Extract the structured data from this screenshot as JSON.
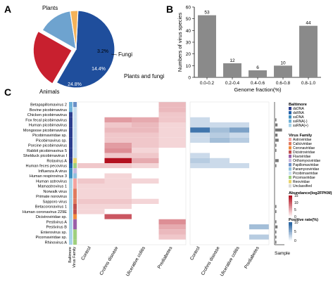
{
  "chart_data": [
    {
      "type": "pie",
      "panel": "A",
      "slices": [
        {
          "label": "Plants",
          "value": 57.6,
          "pct_text": "57.6%",
          "color": "#1f4e9c"
        },
        {
          "label": "Animals",
          "value": 24.8,
          "pct_text": "24.8%",
          "color": "#c8202f"
        },
        {
          "label": "Plants and fungi",
          "value": 14.4,
          "pct_text": "14.4%",
          "color": "#6ea3cf"
        },
        {
          "label": "Fungi",
          "value": 3.2,
          "pct_text": "3.2%",
          "color": "#f5b35a"
        }
      ]
    },
    {
      "type": "bar",
      "panel": "B",
      "categories": [
        "0.0-0.2",
        "0.2-0.4",
        "0.4-0.6",
        "0.6-0.8",
        "0.8-1.0"
      ],
      "values": [
        53,
        12,
        6,
        10,
        44
      ],
      "xlabel": "Genome fraction(%)",
      "ylabel": "Numbers of virus species",
      "ylim": [
        0,
        60
      ],
      "yticks": [
        0,
        10,
        20,
        30,
        40,
        50,
        60
      ],
      "bar_color": "#8a8a8a"
    },
    {
      "type": "heatmap",
      "panel": "C",
      "rows": [
        "Betapapillomavirus 2",
        "Bovine picobirnavirus",
        "Chicken picobirnavirus",
        "Fox fecal picobirnavirus",
        "Human picobirnavirus",
        "Mongoose picobirnavirus",
        "Picobirnaviridae sp.",
        "Picobirnavirus sp.",
        "Porcine picobirnavirus",
        "Rabbit picobirnavirus 5",
        "Shelduck picobirnavirus I",
        "Rotavirus A",
        "Human feces pecovirus",
        "Influenza A virus",
        "Human respirovirus 3",
        "Human astrovirus",
        "Mamastrovirus 1",
        "Norwalk virus",
        "Primate norovirus",
        "Sapporo virus",
        "Betacoronavirus 1",
        "Human coronavirus 229E",
        "Dicistroviridae sp.",
        "Pestivirus A",
        "Pestivirus B",
        "Enterovirus sp.",
        "Picornaviridae sp.",
        "Rhinovirus A"
      ],
      "columns_abundance": [
        "Control",
        "Crohns disease",
        "Ulcerative colitis",
        "Prediabetes"
      ],
      "columns_positive": [
        "Control",
        "Crohns disease",
        "Ulcerative colitis",
        "Prediabetes"
      ],
      "side_labels": [
        "Baltimore",
        "Virus Family"
      ],
      "sample_label": "Sample",
      "abundance": [
        [
          0,
          0,
          0,
          3
        ],
        [
          0,
          0,
          0,
          3
        ],
        [
          0,
          0,
          0,
          2
        ],
        [
          0,
          5,
          4,
          2
        ],
        [
          0,
          2,
          3,
          1
        ],
        [
          0,
          3,
          3,
          1
        ],
        [
          0,
          2,
          2,
          1
        ],
        [
          0,
          2,
          2,
          1
        ],
        [
          0,
          5,
          2,
          1
        ],
        [
          0,
          6,
          1,
          0
        ],
        [
          0,
          2,
          2,
          0
        ],
        [
          0,
          15,
          4,
          0
        ],
        [
          2,
          2,
          1,
          0
        ],
        [
          0,
          0,
          0,
          0
        ],
        [
          0,
          1,
          0,
          0
        ],
        [
          2,
          1,
          1,
          0
        ],
        [
          1,
          1,
          0,
          0
        ],
        [
          1,
          1,
          0,
          0
        ],
        [
          1,
          1,
          0,
          0
        ],
        [
          2,
          2,
          1,
          0
        ],
        [
          1,
          1,
          0,
          0
        ],
        [
          1,
          0,
          0,
          0
        ],
        [
          0,
          10,
          0,
          0
        ],
        [
          0,
          0,
          0,
          6
        ],
        [
          0,
          0,
          0,
          4
        ],
        [
          0,
          0,
          0,
          3
        ],
        [
          0,
          0,
          0,
          2
        ],
        [
          0,
          0,
          0,
          0
        ]
      ],
      "positive": [
        [
          0,
          0,
          0,
          0
        ],
        [
          0,
          0,
          0,
          0
        ],
        [
          0,
          0,
          0,
          0
        ],
        [
          1,
          0,
          0,
          0
        ],
        [
          1,
          1,
          1,
          0
        ],
        [
          8,
          3,
          5,
          0
        ],
        [
          1,
          2,
          1,
          0
        ],
        [
          1,
          3,
          2,
          0
        ],
        [
          0,
          0,
          0,
          0
        ],
        [
          0,
          0,
          0,
          0
        ],
        [
          1,
          0,
          0,
          0
        ],
        [
          2,
          1,
          0,
          0
        ],
        [
          1,
          1,
          1,
          0
        ],
        [
          0,
          0,
          0,
          0
        ],
        [
          0,
          0,
          0,
          0
        ],
        [
          0,
          0,
          0,
          0
        ],
        [
          0,
          0,
          0,
          0
        ],
        [
          0,
          0,
          0,
          0
        ],
        [
          0,
          0,
          0,
          0
        ],
        [
          0,
          0,
          0,
          0
        ],
        [
          0,
          0,
          0,
          0
        ],
        [
          0,
          0,
          0,
          0
        ],
        [
          0,
          0,
          0,
          0
        ],
        [
          0,
          0,
          0,
          0
        ],
        [
          0,
          0,
          0,
          3
        ],
        [
          0,
          0,
          0,
          0
        ],
        [
          0,
          0,
          0,
          2
        ],
        [
          0,
          0,
          0,
          0
        ]
      ],
      "baltimore_row_class": [
        4,
        4,
        1,
        1,
        1,
        1,
        1,
        1,
        1,
        1,
        1,
        1,
        2,
        3,
        3,
        5,
        5,
        5,
        5,
        5,
        5,
        5,
        5,
        5,
        5,
        5,
        5,
        5
      ],
      "family_row_class": [
        6,
        8,
        8,
        8,
        8,
        8,
        8,
        8,
        8,
        8,
        8,
        10,
        9,
        5,
        7,
        0,
        0,
        1,
        1,
        1,
        3,
        3,
        2,
        4,
        4,
        9,
        9,
        9
      ],
      "sample_bars": [
        0,
        0,
        0,
        1,
        2,
        6,
        2,
        3,
        1,
        1,
        0,
        3,
        1,
        0,
        0,
        0,
        0,
        0,
        0,
        0,
        1,
        1,
        0,
        1,
        2,
        1,
        1,
        1
      ],
      "legend_baltimore": {
        "title": "Baltimore",
        "items": [
          {
            "label": "dsDNA",
            "color": "#2c3e8f"
          },
          {
            "label": "dsRNA",
            "color": "#1f5fa8"
          },
          {
            "label": "ssDNA",
            "color": "#3d8fbf"
          },
          {
            "label": "ssRNA(-)",
            "color": "#6eb1d8"
          },
          {
            "label": "ssRNA(+)",
            "color": "#a8d3e8"
          }
        ]
      },
      "legend_family": {
        "title": "Virus Family",
        "items": [
          {
            "label": "Astroviridae",
            "color": "#f4a3a0"
          },
          {
            "label": "Caliciviridae",
            "color": "#e07a5f"
          },
          {
            "label": "Coronaviridae",
            "color": "#f08a3c"
          },
          {
            "label": "Dicistroviridae",
            "color": "#c0504d"
          },
          {
            "label": "Flaviviridae",
            "color": "#9b5fa8"
          },
          {
            "label": "Orthomyxoviridae",
            "color": "#c7b7df"
          },
          {
            "label": "Papillomaviridae",
            "color": "#6a8fc7"
          },
          {
            "label": "Paramyxoviridae",
            "color": "#8fc0e0"
          },
          {
            "label": "Picobirnaviridae",
            "color": "#c9dff0"
          },
          {
            "label": "Picornaviridae",
            "color": "#9fcf7e"
          },
          {
            "label": "Reoviridae",
            "color": "#e8d26a"
          },
          {
            "label": "Unclassified",
            "color": "#d9d9d9"
          }
        ]
      },
      "legend_abundance": {
        "title": "Abundance(log2FPKM)",
        "ticks": [
          "15",
          "10",
          "5",
          "0"
        ],
        "low": "#fff5f5",
        "high": "#b3101f"
      },
      "legend_positive": {
        "title": "Positive rate(%)",
        "ticks": [
          "10",
          "5",
          "0"
        ],
        "low": "#f4f8fc",
        "high": "#1a5a9c"
      }
    }
  ],
  "panel_labels": [
    "A",
    "B",
    "C"
  ]
}
